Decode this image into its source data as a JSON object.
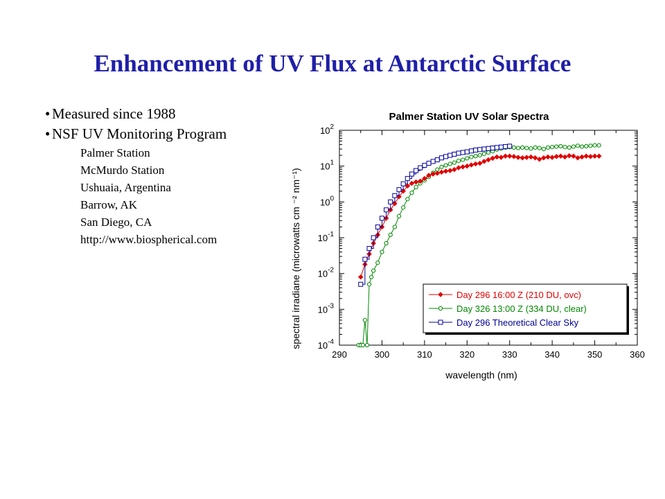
{
  "slide": {
    "title": "Enhancement of UV Flux at Antarctic Surface",
    "title_color": "#1f1fa8",
    "bullets": [
      "Measured since 1988",
      "NSF UV Monitoring Program"
    ],
    "sub_items": [
      "Palmer Station",
      "McMurdo Station",
      "Ushuaia, Argentina",
      "Barrow, AK",
      "San Diego, CA",
      "http://www.biospherical.com"
    ]
  },
  "chart_data": {
    "type": "line",
    "title": "Palmer Station UV Solar Spectra",
    "xlabel": "wavelength (nm)",
    "ylabel": "spectral irradiane (microwatts cm ⁻² nm⁻¹)",
    "xlim": [
      290,
      360
    ],
    "ylim": [
      0.0001,
      100
    ],
    "yscale": "log",
    "x_ticks": [
      "290",
      "300",
      "310",
      "320",
      "330",
      "340",
      "350",
      "360"
    ],
    "y_ticks": [
      {
        "base": "10",
        "exp": "2"
      },
      {
        "base": "10",
        "exp": "1"
      },
      {
        "base": "10",
        "exp": "0"
      },
      {
        "base": "10",
        "exp": "-1"
      },
      {
        "base": "10",
        "exp": "-2"
      },
      {
        "base": "10",
        "exp": "-3"
      },
      {
        "base": "10",
        "exp": "-4"
      }
    ],
    "grid": false,
    "legend_position": "bottom-right",
    "series": [
      {
        "name": "Day 296 16:00 Z  (210 DU, ovc)",
        "color": "#e00000",
        "marker": "diamond",
        "points": [
          [
            295,
            0.008
          ],
          [
            296,
            0.018
          ],
          [
            297,
            0.035
          ],
          [
            298,
            0.07
          ],
          [
            299,
            0.12
          ],
          [
            300,
            0.2
          ],
          [
            301,
            0.35
          ],
          [
            302,
            0.6
          ],
          [
            303,
            0.9
          ],
          [
            304,
            1.4
          ],
          [
            305,
            2.0
          ],
          [
            306,
            2.8
          ],
          [
            307,
            3.3
          ],
          [
            308,
            3.6
          ],
          [
            309,
            3.8
          ],
          [
            310,
            4.5
          ],
          [
            311,
            5.5
          ],
          [
            312,
            6.0
          ],
          [
            313,
            6.3
          ],
          [
            314,
            6.8
          ],
          [
            315,
            7.2
          ],
          [
            316,
            7.5
          ],
          [
            317,
            8.0
          ],
          [
            318,
            9.0
          ],
          [
            319,
            9.5
          ],
          [
            320,
            10.0
          ],
          [
            321,
            10.8
          ],
          [
            322,
            11.5
          ],
          [
            323,
            12.0
          ],
          [
            324,
            13.5
          ],
          [
            325,
            15.0
          ],
          [
            326,
            16.5
          ],
          [
            327,
            18.0
          ],
          [
            328,
            17.5
          ],
          [
            329,
            19.0
          ],
          [
            330,
            19.0
          ],
          [
            331,
            18.5
          ],
          [
            332,
            17.5
          ],
          [
            333,
            17.0
          ],
          [
            334,
            17.5
          ],
          [
            335,
            18.0
          ],
          [
            336,
            17.0
          ],
          [
            337,
            15.5
          ],
          [
            338,
            17.0
          ],
          [
            339,
            18.0
          ],
          [
            340,
            17.5
          ],
          [
            341,
            18.5
          ],
          [
            342,
            19.0
          ],
          [
            343,
            18.0
          ],
          [
            344,
            19.5
          ],
          [
            345,
            19.0
          ],
          [
            346,
            17.0
          ],
          [
            347,
            18.0
          ],
          [
            348,
            19.0
          ],
          [
            349,
            18.5
          ],
          [
            350,
            19.0
          ],
          [
            351,
            19.0
          ]
        ]
      },
      {
        "name": "Day 326 13:00 Z (334 DU, clear)",
        "color": "#008800",
        "marker": "circle",
        "points": [
          [
            294.5,
            0.0001
          ],
          [
            295,
            0.0001
          ],
          [
            295.5,
            0.0001
          ],
          [
            296,
            0.0005
          ],
          [
            296.5,
            0.0001
          ],
          [
            297,
            0.005
          ],
          [
            297.5,
            0.008
          ],
          [
            298,
            0.012
          ],
          [
            299,
            0.02
          ],
          [
            300,
            0.04
          ],
          [
            301,
            0.07
          ],
          [
            302,
            0.12
          ],
          [
            303,
            0.2
          ],
          [
            304,
            0.4
          ],
          [
            305,
            0.7
          ],
          [
            306,
            1.2
          ],
          [
            307,
            1.8
          ],
          [
            308,
            2.6
          ],
          [
            309,
            3.3
          ],
          [
            310,
            4.0
          ],
          [
            311,
            5.0
          ],
          [
            312,
            6.5
          ],
          [
            313,
            8.0
          ],
          [
            314,
            9.5
          ],
          [
            315,
            10.5
          ],
          [
            316,
            11.5
          ],
          [
            317,
            12.5
          ],
          [
            318,
            14.0
          ],
          [
            319,
            15.0
          ],
          [
            320,
            16.5
          ],
          [
            321,
            18.0
          ],
          [
            322,
            19.0
          ],
          [
            323,
            20.0
          ],
          [
            324,
            22.0
          ],
          [
            325,
            24.0
          ],
          [
            326,
            26.0
          ],
          [
            327,
            29.0
          ],
          [
            328,
            31.0
          ],
          [
            329,
            33.0
          ],
          [
            330,
            34.0
          ],
          [
            331,
            33.0
          ],
          [
            332,
            32.0
          ],
          [
            333,
            33.0
          ],
          [
            334,
            32.0
          ],
          [
            335,
            31.0
          ],
          [
            336,
            33.0
          ],
          [
            337,
            32.0
          ],
          [
            338,
            30.0
          ],
          [
            339,
            33.0
          ],
          [
            340,
            34.0
          ],
          [
            341,
            35.0
          ],
          [
            342,
            36.0
          ],
          [
            343,
            34.0
          ],
          [
            344,
            33.0
          ],
          [
            345,
            35.0
          ],
          [
            346,
            37.0
          ],
          [
            347,
            35.0
          ],
          [
            348,
            36.0
          ],
          [
            349,
            37.0
          ],
          [
            350,
            38.0
          ],
          [
            351,
            38.0
          ]
        ]
      },
      {
        "name": "Day 296 Theoretical Clear Sky",
        "color": "#000099",
        "marker": "square",
        "points": [
          [
            295,
            0.005
          ],
          [
            296,
            0.025
          ],
          [
            297,
            0.05
          ],
          [
            298,
            0.1
          ],
          [
            299,
            0.2
          ],
          [
            300,
            0.35
          ],
          [
            301,
            0.6
          ],
          [
            302,
            1.0
          ],
          [
            303,
            1.5
          ],
          [
            304,
            2.2
          ],
          [
            305,
            3.2
          ],
          [
            306,
            4.5
          ],
          [
            307,
            6.0
          ],
          [
            308,
            7.5
          ],
          [
            309,
            9.0
          ],
          [
            310,
            10.5
          ],
          [
            311,
            12.0
          ],
          [
            312,
            13.5
          ],
          [
            313,
            15.0
          ],
          [
            314,
            17.0
          ],
          [
            315,
            18.5
          ],
          [
            316,
            20.0
          ],
          [
            317,
            21.5
          ],
          [
            318,
            23.0
          ],
          [
            319,
            24.0
          ],
          [
            320,
            25.0
          ],
          [
            321,
            26.5
          ],
          [
            322,
            28.0
          ],
          [
            323,
            29.0
          ],
          [
            324,
            30.0
          ],
          [
            325,
            31.0
          ],
          [
            326,
            32.0
          ],
          [
            327,
            33.0
          ],
          [
            328,
            34.0
          ],
          [
            329,
            35.0
          ],
          [
            330,
            36.0
          ]
        ]
      }
    ]
  }
}
